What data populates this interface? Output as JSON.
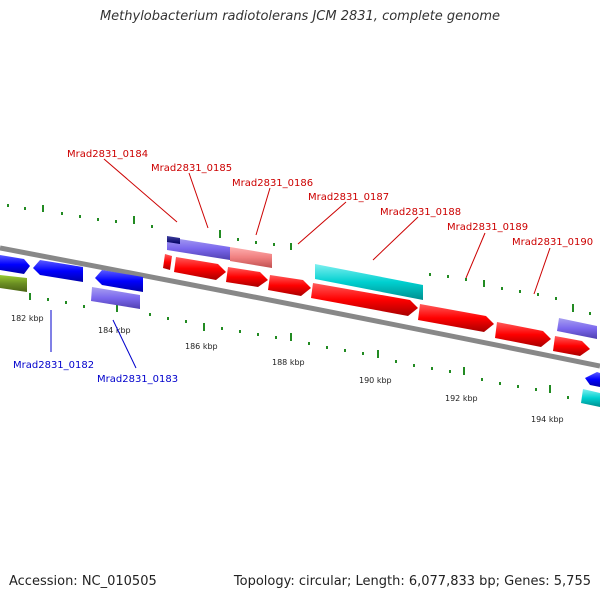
{
  "title": "Methylobacterium radiotolerans JCM 2831, complete genome",
  "footer": {
    "accession": "Accession: NC_010505",
    "summary": "Topology: circular; Length: 6,077,833 bp; Genes: 5,755"
  },
  "colors": {
    "forward_label": "#cc0000",
    "reverse_label": "#0000cc",
    "backbone": "#888888",
    "ticks": "#228b22"
  },
  "tick_labels": [
    "182 kbp",
    "184 kbp",
    "186 kbp",
    "188 kbp",
    "190 kbp",
    "192 kbp",
    "194 kbp"
  ],
  "gene_labels": {
    "forward": [
      "Mrad2831_0184",
      "Mrad2831_0185",
      "Mrad2831_0186",
      "Mrad2831_0187",
      "Mrad2831_0188",
      "Mrad2831_0189",
      "Mrad2831_0190"
    ],
    "reverse": [
      "Mrad2831_0182",
      "Mrad2831_0183"
    ]
  }
}
